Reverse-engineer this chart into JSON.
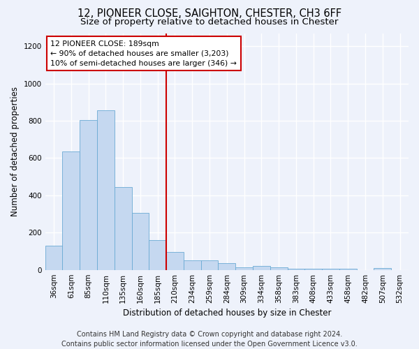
{
  "title": "12, PIONEER CLOSE, SAIGHTON, CHESTER, CH3 6FF",
  "subtitle": "Size of property relative to detached houses in Chester",
  "xlabel": "Distribution of detached houses by size in Chester",
  "ylabel": "Number of detached properties",
  "categories": [
    "36sqm",
    "61sqm",
    "85sqm",
    "110sqm",
    "135sqm",
    "160sqm",
    "185sqm",
    "210sqm",
    "234sqm",
    "259sqm",
    "284sqm",
    "309sqm",
    "334sqm",
    "358sqm",
    "383sqm",
    "408sqm",
    "433sqm",
    "458sqm",
    "482sqm",
    "507sqm",
    "532sqm"
  ],
  "values": [
    130,
    635,
    805,
    855,
    445,
    305,
    160,
    95,
    50,
    50,
    35,
    15,
    20,
    15,
    8,
    5,
    5,
    5,
    0,
    10,
    0
  ],
  "bar_color": "#c5d8f0",
  "bar_edge_color": "#6aaad4",
  "vline_x_index": 6,
  "vline_color": "#cc0000",
  "annotation_line1": "12 PIONEER CLOSE: 189sqm",
  "annotation_line2": "← 90% of detached houses are smaller (3,203)",
  "annotation_line3": "10% of semi-detached houses are larger (346) →",
  "annotation_box_color": "#ffffff",
  "annotation_box_edge_color": "#cc0000",
  "ylim": [
    0,
    1270
  ],
  "yticks": [
    0,
    200,
    400,
    600,
    800,
    1000,
    1200
  ],
  "footer_line1": "Contains HM Land Registry data © Crown copyright and database right 2024.",
  "footer_line2": "Contains public sector information licensed under the Open Government Licence v3.0.",
  "background_color": "#eef2fb",
  "plot_background_color": "#eef2fb",
  "grid_color": "#ffffff",
  "title_fontsize": 10.5,
  "subtitle_fontsize": 9.5,
  "axis_label_fontsize": 8.5,
  "tick_fontsize": 7.5,
  "annotation_fontsize": 7.8,
  "footer_fontsize": 7.0
}
